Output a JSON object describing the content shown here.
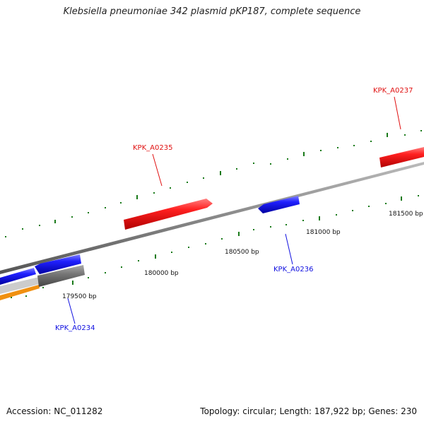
{
  "title": "Klebsiella pneumoniae 342 plasmid pKP187, complete sequence",
  "accession": "Accession: NC_011282",
  "summary": "Topology: circular; Length: 187,922 bp; Genes: 230",
  "colors": {
    "forward_gene": "#e01010",
    "reverse_gene": "#1010e0",
    "tick": "#1a7a1a",
    "backbone": "#888888",
    "orange_feature": "#f09010",
    "gray_feature": "#666666",
    "light_feature": "#cccccc"
  },
  "ticks": [
    {
      "label": "179500 bp"
    },
    {
      "label": "180000 bp"
    },
    {
      "label": "180500 bp"
    },
    {
      "label": "181000 bp"
    },
    {
      "label": "181500 bp"
    }
  ],
  "genes": [
    {
      "id": "KPK_A0234",
      "strand": "reverse"
    },
    {
      "id": "KPK_A0235",
      "strand": "forward"
    },
    {
      "id": "KPK_A0236",
      "strand": "reverse"
    },
    {
      "id": "KPK_A0237",
      "strand": "forward"
    }
  ]
}
